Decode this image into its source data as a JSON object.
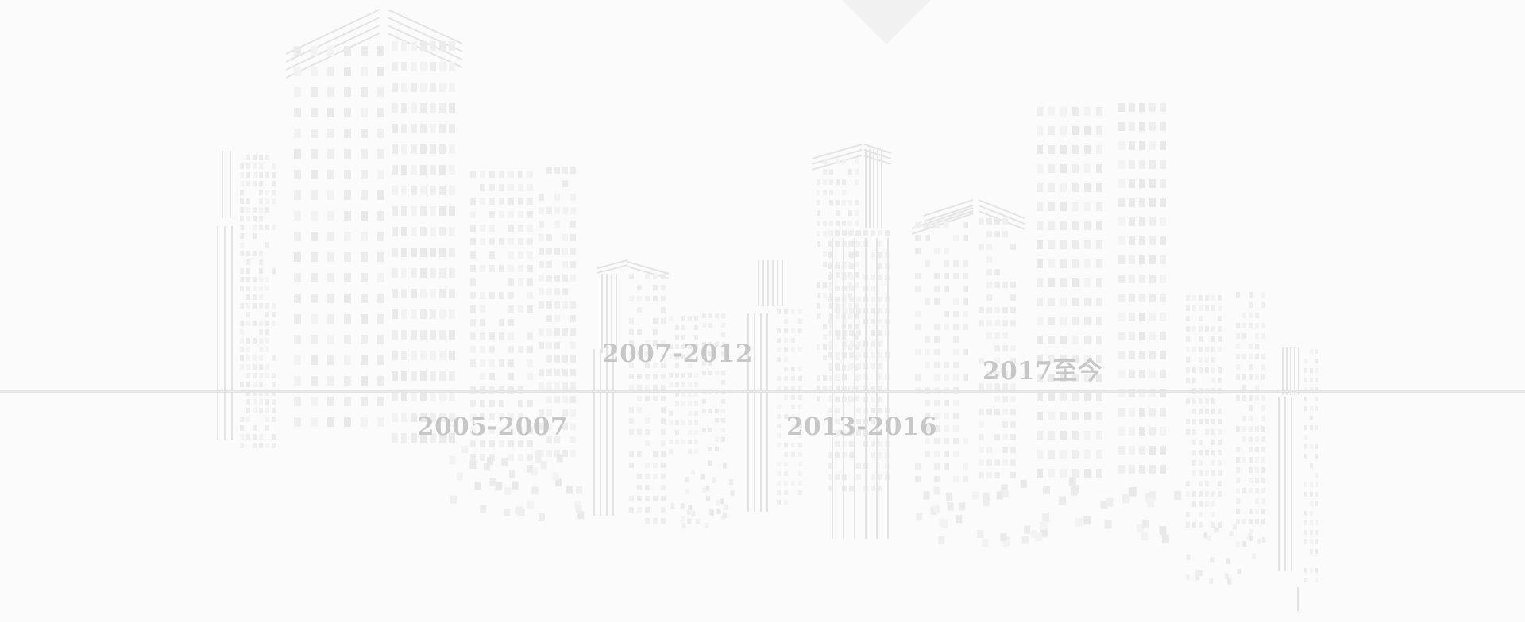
{
  "timeline": {
    "periods": [
      {
        "label": "2005-2007"
      },
      {
        "label": "2007-2012"
      },
      {
        "label": "2013-2016"
      },
      {
        "label": "2017至今"
      }
    ]
  },
  "background": {
    "illustration": "city-skyline",
    "colors": {
      "page": "#fbfbfb",
      "line": "#e6e6e6",
      "text": "#c7c7c7",
      "buildings": "#ececec"
    }
  }
}
